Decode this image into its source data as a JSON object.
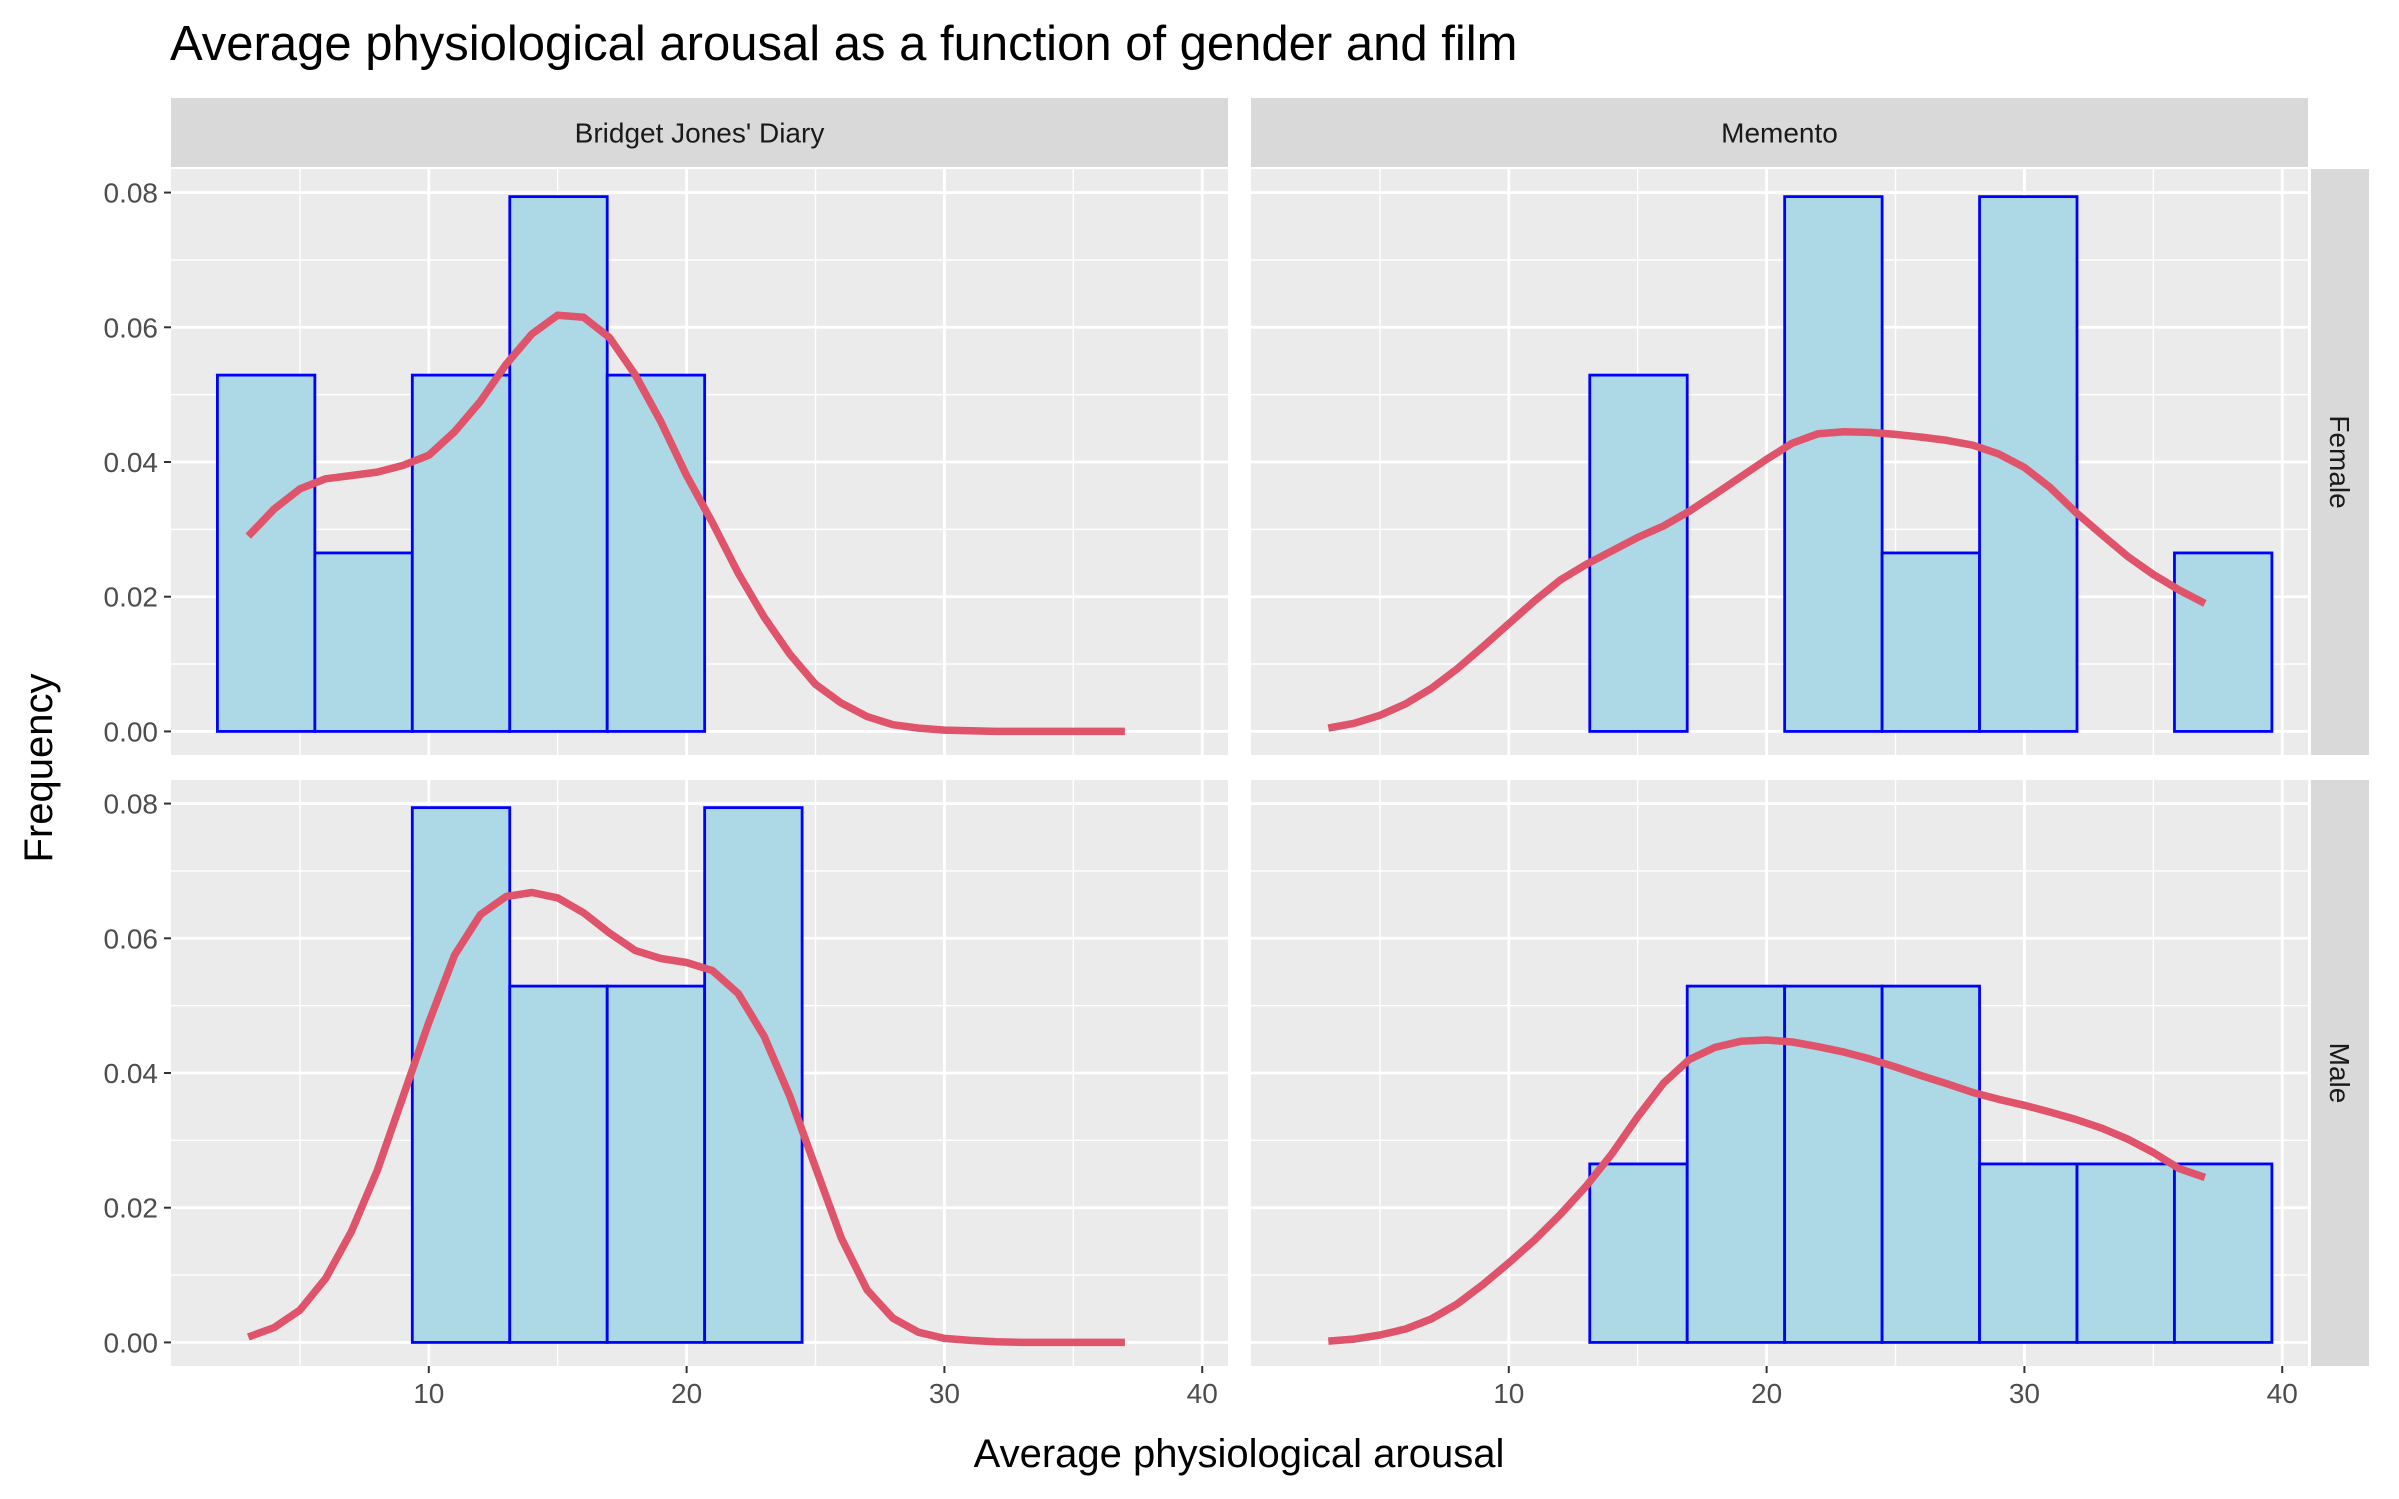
{
  "chart_data": {
    "type": "histogram",
    "title": "Average physiological arousal as a function of gender and film",
    "xlabel": "Average physiological arousal",
    "ylabel": "Frequency",
    "xlim": [
      0,
      41
    ],
    "ylim": [
      -0.0035,
      0.0835
    ],
    "x_ticks": [
      10,
      20,
      30,
      40
    ],
    "x_tick_labels": [
      "10",
      "20",
      "30",
      "40"
    ],
    "y_ticks": [
      0,
      0.02,
      0.04,
      0.06,
      0.08
    ],
    "y_tick_labels": [
      "0.00",
      "0.02",
      "0.04",
      "0.06",
      "0.08"
    ],
    "grid": true,
    "bin_edges": [
      1.8,
      5.58,
      9.36,
      13.14,
      16.92,
      20.7,
      24.48,
      28.26,
      32.04,
      35.82,
      39.6
    ],
    "columns": [
      "Bridget Jones' Diary",
      "Memento"
    ],
    "rows": [
      "Female",
      "Male"
    ],
    "panels": [
      {
        "film": "Bridget Jones' Diary",
        "gender": "Female",
        "bin_heights": [
          0.0529,
          0.0265,
          0.0529,
          0.0794,
          0.0529,
          0,
          0,
          0,
          0,
          0
        ],
        "density_curve": {
          "x": [
            3,
            4,
            5,
            6,
            7,
            8,
            9,
            10,
            11,
            12,
            13,
            14,
            15,
            16,
            17,
            18,
            19,
            20,
            21,
            22,
            23,
            24,
            25,
            26,
            27,
            28,
            29,
            30,
            31,
            32,
            33,
            34,
            35,
            36,
            37
          ],
          "y": [
            0.029,
            0.033,
            0.036,
            0.0375,
            0.038,
            0.0385,
            0.0395,
            0.041,
            0.0445,
            0.049,
            0.0545,
            0.059,
            0.0618,
            0.0615,
            0.0585,
            0.053,
            0.046,
            0.038,
            0.031,
            0.0235,
            0.017,
            0.0115,
            0.007,
            0.0042,
            0.0022,
            0.001,
            0.0005,
            0.0002,
            0.0001,
            0,
            0,
            0,
            0,
            0,
            0
          ]
        }
      },
      {
        "film": "Memento",
        "gender": "Female",
        "bin_heights": [
          0,
          0,
          0,
          0.0529,
          0,
          0.0794,
          0.0265,
          0.0794,
          0,
          0.0265
        ],
        "density_curve": {
          "x": [
            3,
            4,
            5,
            6,
            7,
            8,
            9,
            10,
            11,
            12,
            13,
            14,
            15,
            16,
            17,
            18,
            19,
            20,
            21,
            22,
            23,
            24,
            25,
            26,
            27,
            28,
            29,
            30,
            31,
            32,
            33,
            34,
            35,
            36,
            37
          ],
          "y": [
            0.0005,
            0.0012,
            0.0024,
            0.0041,
            0.0064,
            0.0093,
            0.0126,
            0.016,
            0.0194,
            0.0225,
            0.0248,
            0.0268,
            0.0288,
            0.0305,
            0.0327,
            0.0352,
            0.0378,
            0.0404,
            0.0428,
            0.0442,
            0.0445,
            0.0444,
            0.0441,
            0.0437,
            0.0432,
            0.0425,
            0.0412,
            0.0392,
            0.0362,
            0.0325,
            0.0292,
            0.026,
            0.0233,
            0.021,
            0.019
          ]
        }
      },
      {
        "film": "Bridget Jones' Diary",
        "gender": "Male",
        "bin_heights": [
          0,
          0,
          0.0794,
          0.0529,
          0.0529,
          0.0794,
          0,
          0,
          0,
          0
        ],
        "density_curve": {
          "x": [
            3,
            4,
            5,
            6,
            7,
            8,
            9,
            10,
            11,
            12,
            13,
            14,
            15,
            16,
            17,
            18,
            19,
            20,
            21,
            22,
            23,
            24,
            25,
            26,
            27,
            28,
            29,
            30,
            31,
            32,
            33,
            34,
            35,
            36,
            37
          ],
          "y": [
            0.0008,
            0.0022,
            0.0048,
            0.0095,
            0.0165,
            0.0255,
            0.0365,
            0.0475,
            0.0575,
            0.0635,
            0.0662,
            0.0668,
            0.066,
            0.0638,
            0.0608,
            0.0582,
            0.057,
            0.0564,
            0.0552,
            0.0518,
            0.0455,
            0.0366,
            0.026,
            0.0155,
            0.0078,
            0.0036,
            0.0015,
            0.0006,
            0.0003,
            0.0001,
            0,
            0,
            0,
            0,
            0
          ]
        }
      },
      {
        "film": "Memento",
        "gender": "Male",
        "bin_heights": [
          0,
          0,
          0,
          0.0265,
          0.0529,
          0.0529,
          0.0529,
          0.0265,
          0.0265,
          0.0265
        ],
        "density_curve": {
          "x": [
            3,
            4,
            5,
            6,
            7,
            8,
            9,
            10,
            11,
            12,
            13,
            14,
            15,
            16,
            17,
            18,
            19,
            20,
            21,
            22,
            23,
            24,
            25,
            26,
            27,
            28,
            29,
            30,
            31,
            32,
            33,
            34,
            35,
            36,
            37
          ],
          "y": [
            0.0002,
            0.0005,
            0.0011,
            0.002,
            0.0035,
            0.0057,
            0.0086,
            0.0118,
            0.0152,
            0.019,
            0.0232,
            0.028,
            0.0335,
            0.0385,
            0.042,
            0.0438,
            0.0447,
            0.0449,
            0.0446,
            0.0439,
            0.0431,
            0.0421,
            0.0409,
            0.0396,
            0.0384,
            0.0371,
            0.0361,
            0.0352,
            0.0342,
            0.0331,
            0.0318,
            0.0302,
            0.0282,
            0.0258,
            0.0245
          ]
        }
      }
    ],
    "colors": {
      "panel_background": "#EBEBEB",
      "grid_major": "#FFFFFF",
      "strip_background": "#D9D9D9",
      "bar_fill": "#ADD8E6",
      "bar_outline": "#0000FF",
      "density_line": "#DF536B"
    }
  }
}
